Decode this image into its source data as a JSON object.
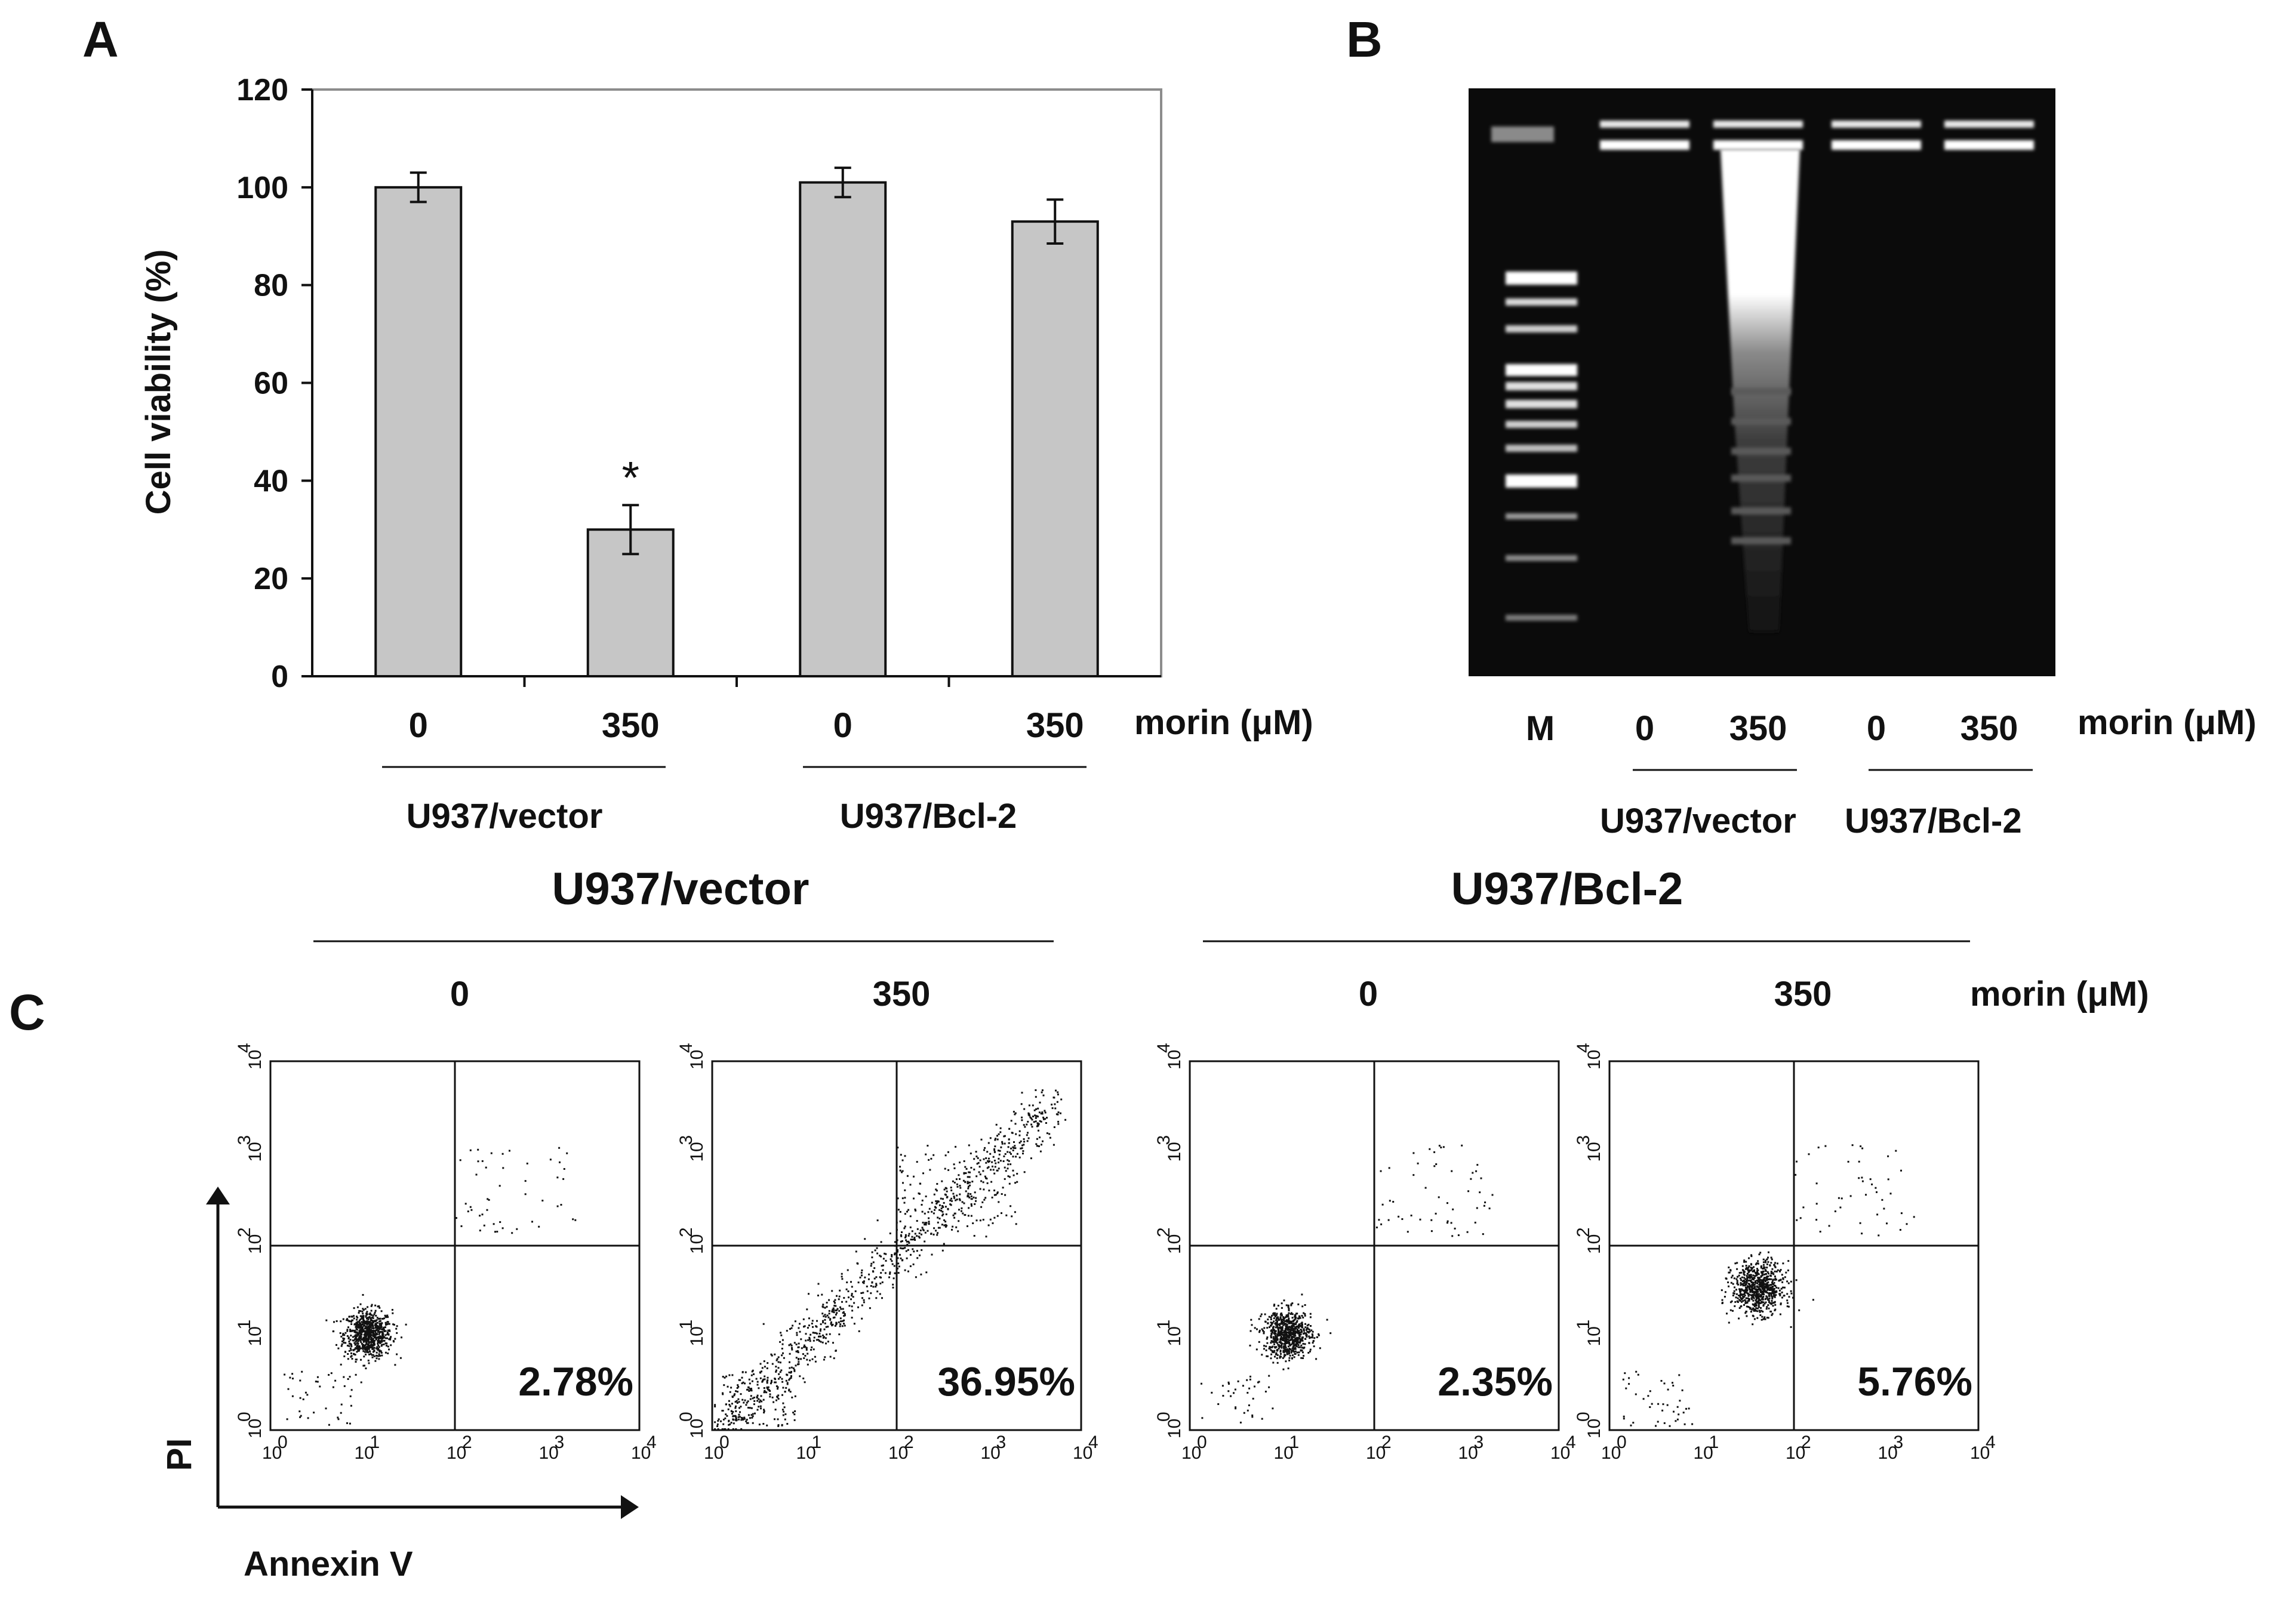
{
  "panels": {
    "A": "A",
    "B": "B",
    "C": "C"
  },
  "colors": {
    "bar_fill": "#c6c6c6",
    "ink": "#111111",
    "gel_background": "#0b0b0b",
    "band": "#ffffff"
  },
  "chart_data": [
    {
      "id": "panel-A",
      "type": "bar",
      "title": "",
      "ylabel": "Cell viability (%)",
      "xlabel": "morin (μM)",
      "ylim": [
        0,
        120
      ],
      "yticks": [
        0,
        20,
        40,
        60,
        80,
        100,
        120
      ],
      "categories": [
        "0",
        "350",
        "0",
        "350"
      ],
      "groups": [
        "U937/vector",
        "U937/Bcl-2"
      ],
      "values": [
        100,
        30,
        101,
        93
      ],
      "errors": [
        3,
        5,
        3,
        4.5
      ],
      "significance": [
        "",
        "*",
        "",
        ""
      ],
      "grid": false
    },
    {
      "id": "panel-B",
      "type": "gel",
      "lanes": [
        "M",
        "0",
        "350",
        "0",
        "350"
      ],
      "treatment_label": "morin (μM)",
      "groups": [
        "U937/vector",
        "U937/Bcl-2"
      ]
    },
    {
      "id": "panel-C",
      "type": "scatter",
      "xlabel": "Annexin V",
      "ylabel": "PI",
      "axis_scale": "log",
      "tick_exponents": [
        0,
        1,
        2,
        3,
        4
      ],
      "quadrant_gate": [
        100,
        100
      ],
      "groups": [
        "U937/vector",
        "U937/Bcl-2"
      ],
      "treatment_label": "morin (μM)",
      "plots": [
        {
          "morin": "0",
          "annexin_positive_percent": "2.78%"
        },
        {
          "morin": "350",
          "annexin_positive_percent": "36.95%"
        },
        {
          "morin": "0",
          "annexin_positive_percent": "2.35%"
        },
        {
          "morin": "350",
          "annexin_positive_percent": "5.76%"
        }
      ]
    }
  ]
}
